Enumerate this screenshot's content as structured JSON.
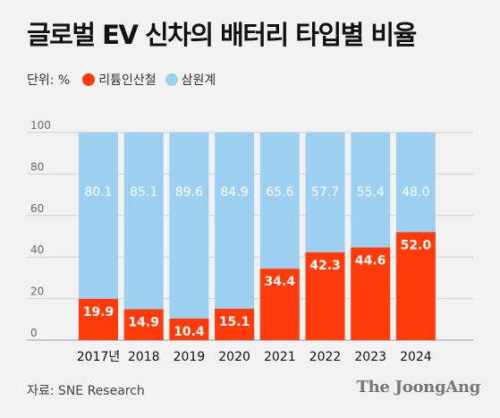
{
  "title": "글로벌 EV 신차의 배터리 타입별 비율",
  "legend": {
    "unit": "단위: %",
    "items": [
      {
        "label": "리튬인산철",
        "color": "#ff3b0b"
      },
      {
        "label": "삼원계",
        "color": "#9ccff0"
      }
    ]
  },
  "footer": {
    "source": "자료: SNE Research",
    "brand": "The JoongAng"
  },
  "chart_data": {
    "type": "bar",
    "stacked": true,
    "title": "글로벌 EV 신차의 배터리 타입별 비율",
    "unit": "%",
    "categories": [
      "2017년",
      "2018",
      "2019",
      "2020",
      "2021",
      "2022",
      "2023",
      "2024"
    ],
    "series": [
      {
        "name": "리튬인산철",
        "color": "#ff3b0b",
        "values": [
          19.9,
          14.9,
          10.4,
          15.1,
          34.4,
          42.3,
          44.6,
          52.0
        ],
        "labels": [
          "19.9",
          "14.9",
          "10.4",
          "15.1",
          "34.4",
          "42.3",
          "44.6",
          "52.0"
        ]
      },
      {
        "name": "삼원계",
        "color": "#9ccff0",
        "values": [
          80.1,
          85.1,
          89.6,
          84.9,
          65.6,
          57.7,
          55.4,
          48.0
        ],
        "labels": [
          "80.1",
          "85.1",
          "89.6",
          "84.9",
          "65.6",
          "57.7",
          "55.4",
          "48.0"
        ]
      }
    ],
    "yticks": [
      "0",
      "20",
      "40",
      "60",
      "80",
      "100"
    ],
    "ylim": [
      0,
      100
    ],
    "grid": true,
    "legend_position": "top-left"
  }
}
